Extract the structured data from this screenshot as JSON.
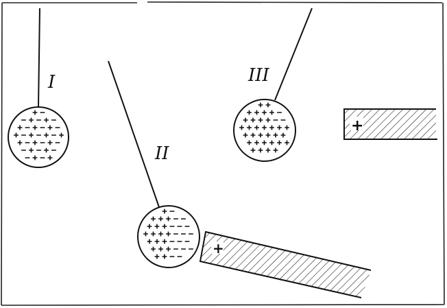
{
  "figure": {
    "labels": {
      "ball_1": "I",
      "ball_2": "II",
      "ball_3": "III"
    },
    "rod_charge_sign": "+",
    "colors": {
      "ink": "#111111",
      "paper": "#ffffff"
    }
  }
}
